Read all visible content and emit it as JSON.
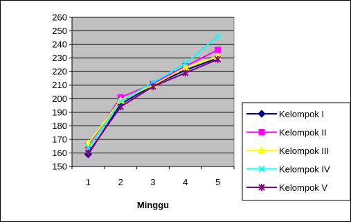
{
  "chart_data": {
    "type": "line",
    "xlabel": "Minggu",
    "ylabel": "",
    "x": [
      1,
      2,
      3,
      4,
      5
    ],
    "ylim": [
      150,
      260
    ],
    "yticks": [
      150,
      160,
      170,
      180,
      190,
      200,
      210,
      220,
      230,
      240,
      250,
      260
    ],
    "grid": true,
    "legend_position": "right",
    "plot_background": "#c0c0c0",
    "series": [
      {
        "name": "Kelompok I",
        "values": [
          159,
          196,
          210,
          221,
          230
        ],
        "color": "#000080",
        "marker": "diamond"
      },
      {
        "name": "Kelompok II",
        "values": [
          165,
          201,
          211,
          224,
          236
        ],
        "color": "#ff00ff",
        "marker": "square"
      },
      {
        "name": "Kelompok III",
        "values": [
          167,
          199,
          210,
          223,
          231
        ],
        "color": "#ffff00",
        "marker": "triangle"
      },
      {
        "name": "Kelompok IV",
        "values": [
          164,
          198,
          212,
          226,
          246
        ],
        "color": "#00ffff",
        "marker": "x"
      },
      {
        "name": "Kelompok V",
        "values": [
          160,
          194,
          209,
          219,
          229
        ],
        "color": "#800080",
        "marker": "star"
      }
    ]
  }
}
